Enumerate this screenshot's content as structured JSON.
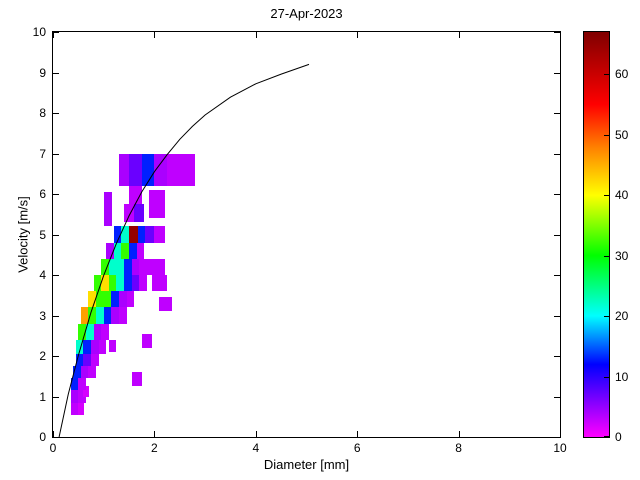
{
  "title": "27-Apr-2023",
  "chart_data": {
    "type": "heatmap",
    "title": "27-Apr-2023",
    "xlabel": "Diameter [mm]",
    "ylabel": "Velocity [m/s]",
    "xlim": [
      0,
      10
    ],
    "ylim": [
      0,
      10
    ],
    "x_ticks": [
      0,
      2,
      4,
      6,
      8,
      10
    ],
    "y_ticks": [
      0,
      1,
      2,
      3,
      4,
      5,
      6,
      7,
      8,
      9,
      10
    ],
    "grid": false,
    "colorbar": {
      "min": 0,
      "max": 67,
      "ticks": [
        0,
        10,
        20,
        30,
        40,
        50,
        60
      ],
      "colormap_stops": [
        [
          0,
          "#ff00ff"
        ],
        [
          12,
          "#0000ff"
        ],
        [
          20,
          "#00ffff"
        ],
        [
          30,
          "#00ff00"
        ],
        [
          40,
          "#ffff00"
        ],
        [
          48,
          "#ff8000"
        ],
        [
          55,
          "#ff0000"
        ],
        [
          67,
          "#800000"
        ]
      ]
    },
    "cells_legend": "each cell = [diameter_mm_left, velocity_ms_bottom, width_mm, height_ms, count]",
    "cells": [
      [
        0.35,
        0.55,
        0.15,
        0.3,
        3
      ],
      [
        0.5,
        0.55,
        0.12,
        0.3,
        2
      ],
      [
        0.35,
        0.85,
        0.15,
        0.3,
        4
      ],
      [
        0.5,
        0.85,
        0.15,
        0.3,
        3
      ],
      [
        0.6,
        1.0,
        0.12,
        0.25,
        2
      ],
      [
        0.35,
        1.15,
        0.15,
        0.3,
        13
      ],
      [
        0.5,
        1.15,
        0.15,
        0.3,
        3
      ],
      [
        1.55,
        1.25,
        0.2,
        0.35,
        3
      ],
      [
        0.4,
        1.45,
        0.15,
        0.3,
        13
      ],
      [
        0.55,
        1.45,
        0.15,
        0.3,
        4
      ],
      [
        0.7,
        1.45,
        0.15,
        0.3,
        3
      ],
      [
        0.45,
        1.75,
        0.15,
        0.3,
        13
      ],
      [
        0.6,
        1.75,
        0.15,
        0.3,
        7
      ],
      [
        0.75,
        1.75,
        0.15,
        0.3,
        3
      ],
      [
        0.45,
        2.05,
        0.15,
        0.35,
        22
      ],
      [
        0.6,
        2.05,
        0.15,
        0.35,
        13
      ],
      [
        0.75,
        2.05,
        0.15,
        0.35,
        4
      ],
      [
        0.9,
        2.05,
        0.15,
        0.35,
        3
      ],
      [
        1.1,
        2.1,
        0.15,
        0.3,
        3
      ],
      [
        1.75,
        2.2,
        0.2,
        0.35,
        3
      ],
      [
        0.5,
        2.4,
        0.15,
        0.4,
        32
      ],
      [
        0.65,
        2.4,
        0.15,
        0.4,
        22
      ],
      [
        0.8,
        2.4,
        0.15,
        0.4,
        4
      ],
      [
        0.95,
        2.4,
        0.15,
        0.4,
        3
      ],
      [
        0.55,
        2.8,
        0.15,
        0.4,
        46
      ],
      [
        0.7,
        2.8,
        0.15,
        0.4,
        32
      ],
      [
        0.85,
        2.8,
        0.15,
        0.4,
        22
      ],
      [
        1.0,
        2.8,
        0.15,
        0.4,
        13
      ],
      [
        1.15,
        2.8,
        0.15,
        0.4,
        4
      ],
      [
        1.3,
        2.8,
        0.15,
        0.4,
        3
      ],
      [
        0.7,
        3.2,
        0.15,
        0.4,
        42
      ],
      [
        0.85,
        3.2,
        0.15,
        0.4,
        32
      ],
      [
        1.0,
        3.2,
        0.15,
        0.4,
        32
      ],
      [
        1.15,
        3.2,
        0.15,
        0.4,
        13
      ],
      [
        1.3,
        3.2,
        0.15,
        0.4,
        4
      ],
      [
        1.45,
        3.2,
        0.15,
        0.4,
        3
      ],
      [
        2.1,
        3.1,
        0.25,
        0.35,
        3
      ],
      [
        0.8,
        3.6,
        0.15,
        0.4,
        32
      ],
      [
        0.95,
        3.6,
        0.15,
        0.4,
        42
      ],
      [
        1.1,
        3.6,
        0.15,
        0.4,
        32
      ],
      [
        1.25,
        3.6,
        0.15,
        0.4,
        22
      ],
      [
        1.4,
        3.6,
        0.15,
        0.4,
        13
      ],
      [
        1.55,
        3.6,
        0.15,
        0.4,
        7
      ],
      [
        1.7,
        3.6,
        0.15,
        0.4,
        3
      ],
      [
        1.95,
        3.6,
        0.3,
        0.4,
        3
      ],
      [
        0.95,
        4.0,
        0.15,
        0.4,
        32
      ],
      [
        1.1,
        4.0,
        0.15,
        0.4,
        22
      ],
      [
        1.25,
        4.0,
        0.15,
        0.4,
        22
      ],
      [
        1.4,
        4.0,
        0.15,
        0.4,
        13
      ],
      [
        1.55,
        4.0,
        0.15,
        0.4,
        4
      ],
      [
        1.7,
        4.0,
        0.2,
        0.4,
        3
      ],
      [
        1.9,
        4.0,
        0.3,
        0.4,
        3
      ],
      [
        1.05,
        4.4,
        0.15,
        0.4,
        4
      ],
      [
        1.2,
        4.4,
        0.15,
        0.4,
        22
      ],
      [
        1.35,
        4.4,
        0.15,
        0.4,
        32
      ],
      [
        1.5,
        4.4,
        0.15,
        0.4,
        13
      ],
      [
        1.65,
        4.4,
        0.15,
        0.4,
        3
      ],
      [
        1.2,
        4.8,
        0.15,
        0.4,
        13
      ],
      [
        1.35,
        4.8,
        0.15,
        0.4,
        22
      ],
      [
        1.5,
        4.8,
        0.17,
        0.4,
        65
      ],
      [
        1.67,
        4.8,
        0.15,
        0.4,
        13
      ],
      [
        1.82,
        4.8,
        0.18,
        0.4,
        7
      ],
      [
        2.0,
        4.8,
        0.2,
        0.4,
        3
      ],
      [
        1.0,
        5.2,
        0.17,
        0.85,
        4
      ],
      [
        1.4,
        5.3,
        0.2,
        0.45,
        3
      ],
      [
        1.6,
        5.3,
        0.2,
        0.45,
        7
      ],
      [
        1.9,
        5.4,
        0.3,
        0.7,
        3
      ],
      [
        1.5,
        5.75,
        0.25,
        0.45,
        3
      ],
      [
        1.3,
        6.2,
        0.2,
        0.8,
        4
      ],
      [
        1.5,
        6.2,
        0.25,
        0.8,
        7
      ],
      [
        1.75,
        6.2,
        0.25,
        0.8,
        13
      ],
      [
        2.0,
        6.2,
        0.25,
        0.8,
        4
      ],
      [
        2.25,
        6.2,
        0.25,
        0.8,
        3
      ],
      [
        2.5,
        6.2,
        0.3,
        0.8,
        3
      ]
    ],
    "curve": {
      "name": "terminal-velocity-curve",
      "x": [
        0.12,
        0.3,
        0.5,
        0.75,
        1.0,
        1.25,
        1.5,
        1.75,
        2.0,
        2.25,
        2.5,
        2.75,
        3.0,
        3.5,
        4.0,
        4.5,
        5.05
      ],
      "y": [
        0.0,
        1.05,
        2.02,
        3.08,
        3.99,
        4.78,
        5.46,
        6.05,
        6.55,
        6.97,
        7.35,
        7.67,
        7.95,
        8.39,
        8.72,
        8.96,
        9.2
      ]
    }
  }
}
